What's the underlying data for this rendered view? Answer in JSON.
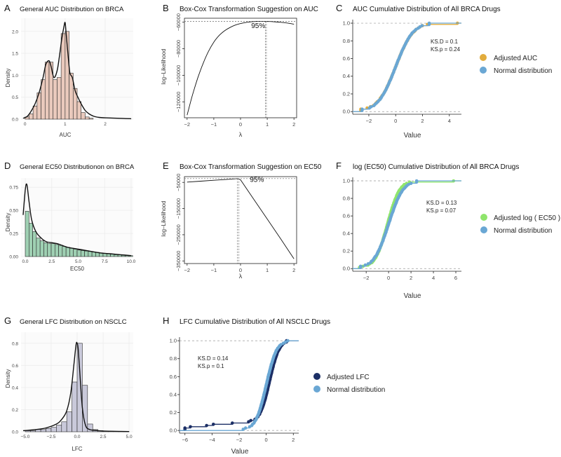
{
  "figure": "Drug response distribution panels",
  "chart_data": [
    {
      "id": "A",
      "panel_label": "A",
      "type": "histogram",
      "title": "General AUC Distribution on BRCA",
      "xlabel": "AUC",
      "ylabel": "Density",
      "xlim": [
        -0.1,
        2.7
      ],
      "ylim": [
        0,
        2.3
      ],
      "xticks": [
        "0",
        "1",
        "2"
      ],
      "xtick_values": [
        0,
        1,
        2
      ],
      "yticks": [
        "0.0",
        "0.5",
        "1.0",
        "1.5",
        "2.0"
      ],
      "ytick_values": [
        0,
        0.5,
        1,
        1.5,
        2
      ],
      "bar_start": 0,
      "bin_width": 0.1,
      "bars": [
        0.05,
        0.12,
        0.3,
        0.6,
        0.9,
        1.3,
        1.3,
        0.9,
        0.95,
        1.95,
        2.0,
        1.05,
        0.7,
        0.4,
        0.15,
        0.05,
        0.02
      ],
      "density_x": [
        -0.05,
        0.05,
        0.15,
        0.25,
        0.35,
        0.45,
        0.52,
        0.6,
        0.65,
        0.72,
        0.8,
        0.86,
        0.92,
        0.97,
        1.0,
        1.03,
        1.08,
        1.12,
        1.18,
        1.25,
        1.32,
        1.4,
        1.5,
        1.6,
        1.7,
        1.85,
        2.0,
        2.3,
        2.65
      ],
      "density_y": [
        0.02,
        0.06,
        0.18,
        0.35,
        0.6,
        0.95,
        1.25,
        1.33,
        1.2,
        0.95,
        1.1,
        1.45,
        1.85,
        2.1,
        2.2,
        1.9,
        1.4,
        1.05,
        0.95,
        0.65,
        0.5,
        0.35,
        0.2,
        0.12,
        0.07,
        0.04,
        0.03,
        0.02,
        0.01
      ],
      "fill": "#e9c9bc",
      "line": "#111111"
    },
    {
      "id": "B",
      "panel_label": "B",
      "type": "line",
      "title": "Box-Cox Transformation Suggestion on AUC",
      "xlabel": "λ",
      "ylabel": "log–Likelihood",
      "xlim": [
        -2.1,
        2.1
      ],
      "ylim": [
        -132000,
        -57000
      ],
      "xticks": [
        "−2",
        "−1",
        "0",
        "1",
        "2"
      ],
      "xtick_values": [
        -2,
        -1,
        0,
        1,
        2
      ],
      "yticks": [
        "−120000",
        "−100000",
        "−80000",
        "−60000"
      ],
      "ytick_values": [
        -120000,
        -100000,
        -80000,
        -60000
      ],
      "x": [
        -2,
        -1.8,
        -1.6,
        -1.4,
        -1.2,
        -1.0,
        -0.8,
        -0.6,
        -0.4,
        -0.2,
        0,
        0.2,
        0.4,
        0.6,
        0.8,
        1.0,
        1.2,
        1.4,
        1.6,
        1.8,
        2.0
      ],
      "y": [
        -130000,
        -115000,
        -102000,
        -91000,
        -82000,
        -75000,
        -70000,
        -66500,
        -64000,
        -62200,
        -61000,
        -60200,
        -59700,
        -59400,
        -59300,
        -59400,
        -59600,
        -59900,
        -60300,
        -60800,
        -61500
      ],
      "ci_line_y": -59300,
      "ci_lines_x": [
        0.93,
        0.97
      ],
      "annotation": "95%",
      "annotation_x": 0.4,
      "annotation_y": -64500
    },
    {
      "id": "C",
      "panel_label": "C",
      "type": "ecdf",
      "title": "AUC Cumulative Distribution of All BRCA Drugs",
      "xlabel": "Value",
      "ylabel": "",
      "xlim": [
        -3.2,
        4.9
      ],
      "ylim": [
        -0.03,
        1.04
      ],
      "xticks": [
        "−2",
        "0",
        "2",
        "4"
      ],
      "xtick_values": [
        -2,
        0,
        2,
        4
      ],
      "yticks": [
        "0.0",
        "0.2",
        "0.4",
        "0.6",
        "0.8",
        "1.0"
      ],
      "ytick_values": [
        0,
        0.2,
        0.4,
        0.6,
        0.8,
        1.0
      ],
      "stats": [
        "KS.D = 0.1",
        "KS.p = 0.24"
      ],
      "legend": [
        {
          "name": "Adjusted AUC",
          "color": "#e2ac3d"
        },
        {
          "name": "Normal distribution",
          "color": "#6aa7d4"
        }
      ],
      "series": [
        {
          "name": "Adjusted AUC",
          "color": "#e2ac3d",
          "mean": 0,
          "sd": 1.02,
          "n": 70,
          "min": -2.6,
          "max": 4.6
        },
        {
          "name": "Normal distribution",
          "color": "#6aa7d4",
          "mean": 0,
          "sd": 1.0,
          "n": 70,
          "min": -2.5,
          "max": 2.5
        }
      ]
    },
    {
      "id": "D",
      "panel_label": "D",
      "type": "histogram",
      "title": "General EC50 Distributionon on BRCA",
      "xlabel": "EC50",
      "ylabel": "Density",
      "xlim": [
        -0.4,
        10.2
      ],
      "ylim": [
        0,
        0.85
      ],
      "xticks": [
        "0.0",
        "2.5",
        "5.0",
        "7.5",
        "10.0"
      ],
      "xtick_values": [
        0,
        2.5,
        5,
        7.5,
        10
      ],
      "yticks": [
        "0.00",
        "0.25",
        "0.50",
        "0.75"
      ],
      "ytick_values": [
        0,
        0.25,
        0.5,
        0.75
      ],
      "bar_start": 0,
      "bin_width": 0.35,
      "bars": [
        0.49,
        0.36,
        0.27,
        0.2,
        0.17,
        0.15,
        0.14,
        0.14,
        0.13,
        0.12,
        0.11,
        0.1,
        0.09,
        0.08,
        0.07,
        0.065,
        0.06,
        0.055,
        0.05,
        0.045,
        0.04,
        0.035,
        0.03,
        0.025,
        0.02,
        0.018,
        0.015,
        0.012,
        0.01
      ],
      "density_x": [
        -0.2,
        0.0,
        0.15,
        0.35,
        0.6,
        1.0,
        1.5,
        2.0,
        2.5,
        3.0,
        3.5,
        4.0,
        5.0,
        6.0,
        7.0,
        8.0,
        9.0,
        10.0
      ],
      "density_y": [
        0.45,
        0.72,
        0.78,
        0.6,
        0.4,
        0.27,
        0.2,
        0.16,
        0.15,
        0.14,
        0.12,
        0.1,
        0.08,
        0.06,
        0.04,
        0.03,
        0.02,
        0.01
      ],
      "fill": "#9fd0b3",
      "line": "#111111"
    },
    {
      "id": "E",
      "panel_label": "E",
      "type": "line",
      "title": "Box-Cox Transformation Suggestion on EC50",
      "xlabel": "λ",
      "ylabel": "log–Likelihood",
      "xlim": [
        -2.1,
        2.1
      ],
      "ylim": [
        -360000,
        -28000
      ],
      "xticks": [
        "−2",
        "−1",
        "0",
        "1",
        "2"
      ],
      "xtick_values": [
        -2,
        -1,
        0,
        1,
        2
      ],
      "yticks": [
        "−350000",
        "−250000",
        "−150000",
        "−50000"
      ],
      "ytick_values": [
        -350000,
        -250000,
        -150000,
        -50000
      ],
      "x": [
        -2,
        -1.5,
        -1,
        -0.5,
        -0.1,
        0,
        0.5,
        1.0,
        1.5,
        2.0
      ],
      "y": [
        -49000,
        -45500,
        -42000,
        -38500,
        -35500,
        -40000,
        -115000,
        -190000,
        -265000,
        -342000
      ],
      "ci_line_y": -35500,
      "ci_lines_x": [
        -0.12,
        -0.06
      ],
      "annotation": "95%",
      "annotation_x": 0.35,
      "annotation_y": -48000
    },
    {
      "id": "F",
      "panel_label": "F",
      "type": "ecdf",
      "title": "log (EC50) Cumulative Distribution of All BRCA Drugs",
      "xlabel": "Value",
      "ylabel": "",
      "xlim": [
        -3.2,
        6.5
      ],
      "ylim": [
        -0.03,
        1.04
      ],
      "xticks": [
        "−2",
        "0",
        "2",
        "4",
        "6"
      ],
      "xtick_values": [
        -2,
        0,
        2,
        4,
        6
      ],
      "yticks": [
        "0.0",
        "0.2",
        "0.4",
        "0.6",
        "0.8",
        "1.0"
      ],
      "ytick_values": [
        0,
        0.2,
        0.4,
        0.6,
        0.8,
        1.0
      ],
      "stats": [
        "KS.D = 0.13",
        "KS.p = 0.07"
      ],
      "legend": [
        {
          "name": "Adjusted log ( EC50 )",
          "color": "#8fe56c"
        },
        {
          "name": "Normal distribution",
          "color": "#6aa7d4"
        }
      ],
      "series": [
        {
          "name": "Adjusted log ( EC50 )",
          "color": "#8fe56c",
          "mean": -0.1,
          "sd": 0.85,
          "n": 70,
          "min": -2.6,
          "max": 5.8
        },
        {
          "name": "Normal distribution",
          "color": "#6aa7d4",
          "mean": 0,
          "sd": 1.0,
          "n": 70,
          "min": -2.5,
          "max": 2.5
        }
      ]
    },
    {
      "id": "G",
      "panel_label": "G",
      "type": "histogram",
      "title": "General LFC Distribution on NSCLC",
      "xlabel": "LFC",
      "ylabel": "Density",
      "xlim": [
        -5.4,
        5.4
      ],
      "ylim": [
        0,
        0.9
      ],
      "xticks": [
        "−5.0",
        "−2.5",
        "0.0",
        "2.5",
        "5.0"
      ],
      "xtick_values": [
        -5,
        -2.5,
        0,
        2.5,
        5
      ],
      "yticks": [
        "0.0",
        "0.2",
        "0.4",
        "0.6",
        "0.8"
      ],
      "ytick_values": [
        0,
        0.2,
        0.4,
        0.6,
        0.8
      ],
      "bar_start": -5.0,
      "bin_width": 0.5,
      "bars": [
        0.01,
        0.01,
        0.02,
        0.02,
        0.03,
        0.04,
        0.06,
        0.09,
        0.18,
        0.45,
        0.8,
        0.42,
        0.07,
        0.02,
        0.01,
        0.005,
        0.005,
        0.003,
        0.002,
        0.002
      ],
      "density_x": [
        -5.2,
        -4.0,
        -3.0,
        -2.0,
        -1.5,
        -1.0,
        -0.6,
        -0.3,
        -0.1,
        0.0,
        0.1,
        0.3,
        0.5,
        0.8,
        1.2,
        2.0,
        3.0,
        5.0
      ],
      "density_y": [
        0.01,
        0.02,
        0.035,
        0.07,
        0.11,
        0.19,
        0.36,
        0.62,
        0.79,
        0.8,
        0.75,
        0.48,
        0.22,
        0.06,
        0.02,
        0.01,
        0.005,
        0.002
      ],
      "fill": "#c9c9da",
      "line": "#111111"
    },
    {
      "id": "H",
      "panel_label": "H",
      "type": "ecdf",
      "title": "LFC Cumulative Distribution of All NSCLC Drugs",
      "xlabel": "Value",
      "ylabel": "",
      "xlim": [
        -6.4,
        2.4
      ],
      "ylim": [
        -0.03,
        1.04
      ],
      "xticks": [
        "−6",
        "−4",
        "−2",
        "0",
        "2"
      ],
      "xtick_values": [
        -6,
        -4,
        -2,
        0,
        2
      ],
      "yticks": [
        "0.0",
        "0.2",
        "0.4",
        "0.6",
        "0.8",
        "1.0"
      ],
      "ytick_values": [
        0,
        0.2,
        0.4,
        0.6,
        0.8,
        1.0
      ],
      "stats": [
        "KS.D = 0.14",
        "KS.p = 0.1"
      ],
      "legend": [
        {
          "name": "Adjusted LFC",
          "color": "#1c2f66"
        },
        {
          "name": "Normal distribution",
          "color": "#6aa7d4"
        }
      ],
      "series": [
        {
          "name": "Adjusted LFC",
          "color": "#1c2f66",
          "mean": 0.25,
          "sd": 0.55,
          "n": 70,
          "min": -6.0,
          "max": 1.5,
          "tail": [
            -6.0,
            -5.6,
            -4.4,
            -3.9,
            -2.5,
            -1.3
          ]
        },
        {
          "name": "Normal distribution",
          "color": "#6aa7d4",
          "mean": 0,
          "sd": 0.6,
          "n": 70,
          "min": -1.7,
          "max": 1.6
        }
      ]
    }
  ]
}
